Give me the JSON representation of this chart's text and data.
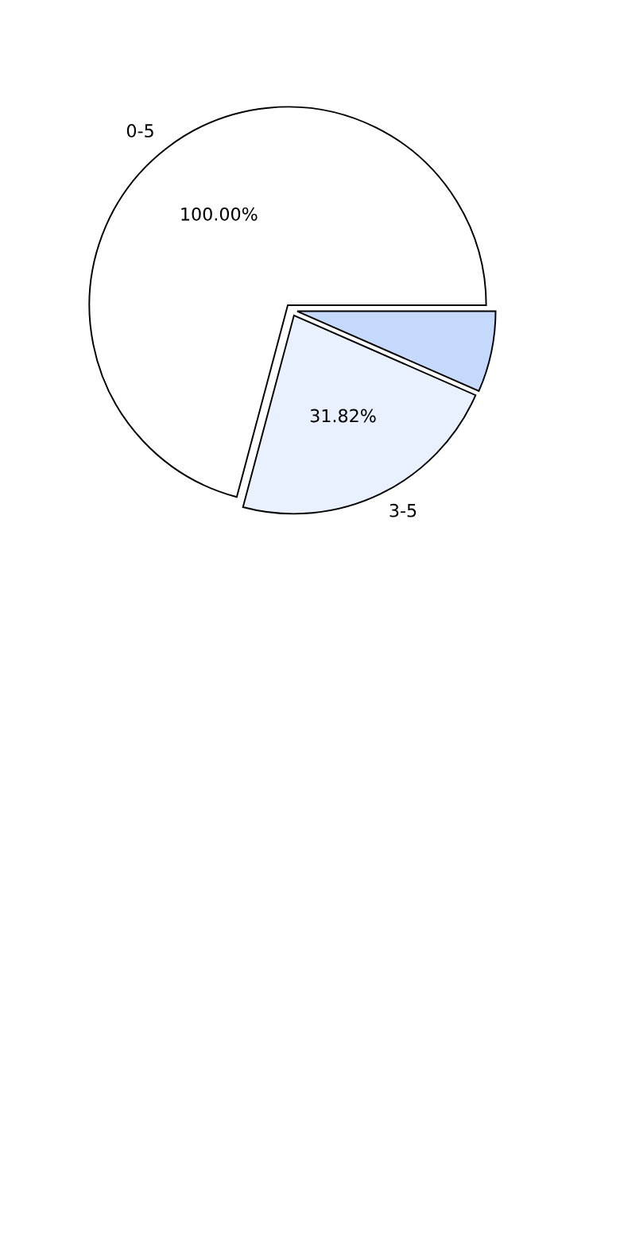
{
  "chart_data": {
    "type": "pie",
    "categories": [
      "0-5",
      "3-5",
      null
    ],
    "values": [
      100,
      31.82,
      9.3
    ],
    "value_labels": [
      "100.00%",
      "31.82%",
      null
    ],
    "colors": [
      "#ffffff",
      "#eaf1fe",
      "#c5d9fd"
    ]
  }
}
